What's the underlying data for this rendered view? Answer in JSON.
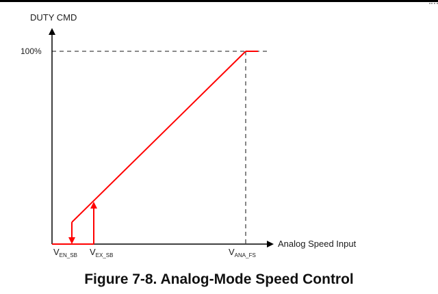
{
  "diagram": {
    "y_axis_label": "DUTY CMD",
    "x_axis_label": "Analog Speed Input",
    "y_tick_label": "100%",
    "labels": {
      "v_en_sb": {
        "main": "V",
        "sub": "EN_SB"
      },
      "v_ex_sb": {
        "main": "V",
        "sub": "EX_SB"
      },
      "v_ana_fs": {
        "main": "V",
        "sub": "ANA_FS"
      }
    },
    "colors": {
      "curve": "#ff0000",
      "axes": "#000000",
      "dashed": "#444444"
    }
  },
  "caption": "Figure 7-8. Analog-Mode Speed Control"
}
